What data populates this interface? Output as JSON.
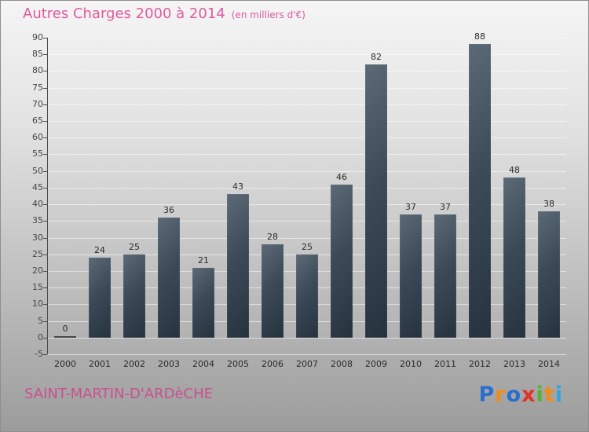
{
  "header": {
    "title": "Autres Charges 2000 à 2014",
    "subtitle": "(en milliers d'€)"
  },
  "chart_data": {
    "type": "bar",
    "title": "Autres Charges 2000 à 2014",
    "subtitle": "(en milliers d'€)",
    "categories": [
      "2000",
      "2001",
      "2002",
      "2003",
      "2004",
      "2005",
      "2006",
      "2007",
      "2008",
      "2009",
      "2010",
      "2011",
      "2012",
      "2013",
      "2014"
    ],
    "values": [
      0,
      24,
      25,
      36,
      21,
      43,
      28,
      25,
      46,
      82,
      37,
      37,
      88,
      48,
      38
    ],
    "xlabel": "",
    "ylabel": "",
    "ylim": [
      -5,
      90
    ],
    "ytick_step": 5,
    "grid": true,
    "legend": "none",
    "bar_color_top": "#5c6a77",
    "bar_color_bottom": "#26323e",
    "value_label_color": "#2b2b2b"
  },
  "footer": {
    "commune": "SAINT-MARTIN-D'ARDèCHE"
  },
  "logo": {
    "name": "Proxiti",
    "letters": [
      {
        "ch": "P",
        "color": "#2a6fce"
      },
      {
        "ch": "r",
        "color": "#f08c1a"
      },
      {
        "ch": "o",
        "color": "#2a6fce"
      },
      {
        "ch": "x",
        "color": "#e03226"
      },
      {
        "ch": "i",
        "color": "#55b32f"
      },
      {
        "ch": "t",
        "color": "#f08c1a"
      },
      {
        "ch": "i",
        "color": "#35a3dc"
      }
    ]
  },
  "colors": {
    "title_pink": "#df5a9e",
    "commune_pink": "#c9508f",
    "grid_white": "rgba(255,255,255,0.55)",
    "axis_dark": "#4a4a4a"
  }
}
